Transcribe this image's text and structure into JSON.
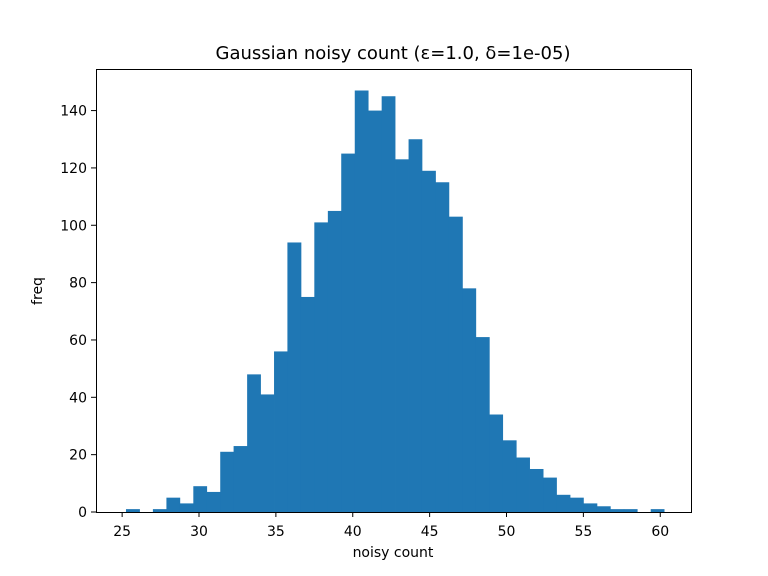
{
  "chart_data": {
    "type": "bar",
    "title": "Gaussian noisy count (ε=1.0, δ=1e-05)",
    "xlabel": "noisy count",
    "ylabel": "freq",
    "xlim": [
      23.3,
      62.0
    ],
    "ylim": [
      0,
      154.5
    ],
    "xticks": [
      25,
      30,
      35,
      40,
      45,
      50,
      55,
      60
    ],
    "yticks": [
      0,
      20,
      40,
      60,
      80,
      100,
      120,
      140
    ],
    "grid": false,
    "bar_color": "#1f77b4",
    "bin_edges": [
      25.25,
      26.13,
      27.0,
      27.88,
      28.75,
      29.63,
      30.5,
      31.38,
      32.25,
      33.13,
      34.0,
      34.88,
      35.75,
      36.63,
      37.5,
      38.38,
      39.25,
      40.13,
      41.0,
      41.88,
      42.75,
      43.63,
      44.5,
      45.38,
      46.25,
      47.13,
      48.0,
      48.88,
      49.75,
      50.63,
      51.5,
      52.38,
      53.25,
      54.13,
      55.0,
      55.88,
      56.75,
      57.63,
      58.5,
      59.38,
      60.25
    ],
    "values": [
      1,
      0,
      1,
      5,
      3,
      9,
      7,
      21,
      23,
      48,
      41,
      56,
      94,
      75,
      101,
      105,
      125,
      147,
      140,
      145,
      123,
      130,
      119,
      115,
      103,
      78,
      61,
      34,
      25,
      19,
      15,
      12,
      6,
      5,
      3,
      2,
      1,
      1,
      0,
      1
    ]
  }
}
